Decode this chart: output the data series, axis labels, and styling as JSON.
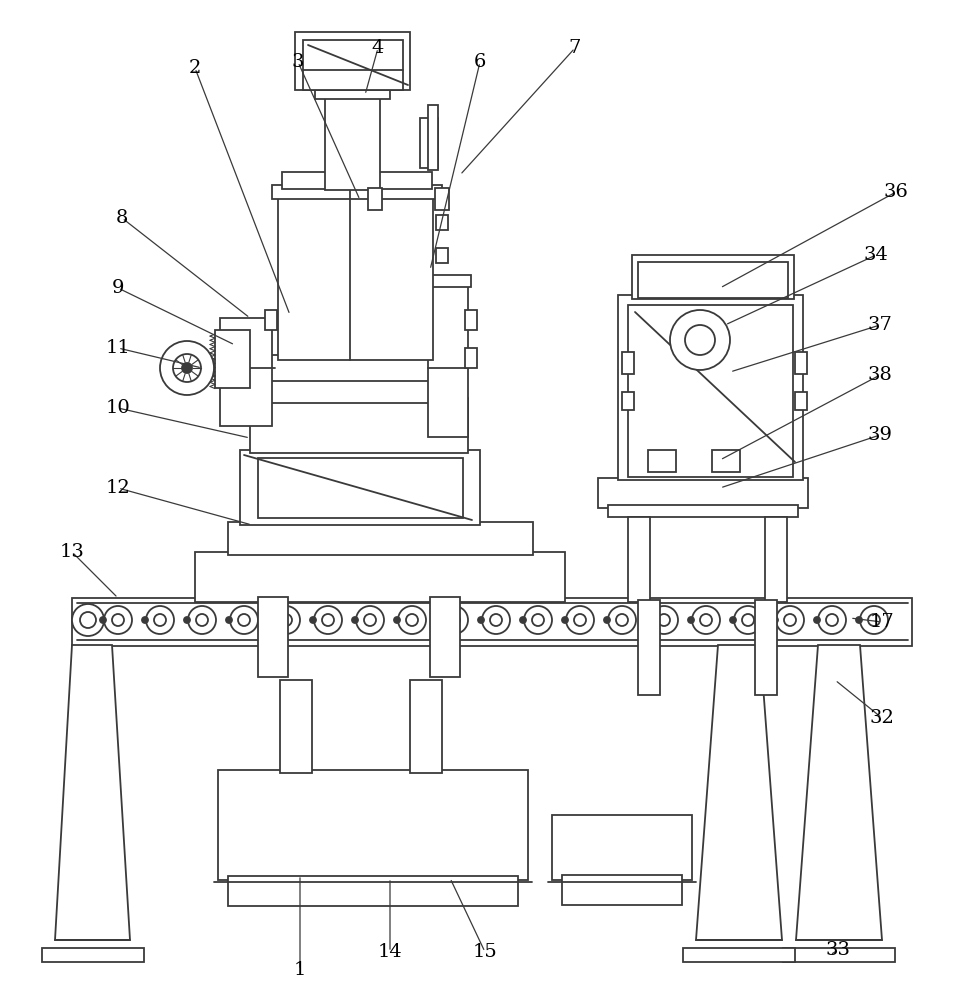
{
  "bg_color": "#ffffff",
  "lc": "#3a3a3a",
  "lw": 1.3,
  "annotations": [
    [
      "1",
      300,
      970,
      300,
      875
    ],
    [
      "2",
      195,
      68,
      290,
      315
    ],
    [
      "3",
      298,
      62,
      360,
      200
    ],
    [
      "4",
      378,
      48,
      365,
      95
    ],
    [
      "6",
      480,
      62,
      430,
      270
    ],
    [
      "7",
      575,
      48,
      460,
      175
    ],
    [
      "8",
      122,
      218,
      250,
      318
    ],
    [
      "9",
      118,
      288,
      235,
      345
    ],
    [
      "10",
      118,
      408,
      250,
      438
    ],
    [
      "11",
      118,
      348,
      202,
      368
    ],
    [
      "12",
      118,
      488,
      252,
      525
    ],
    [
      "13",
      72,
      552,
      118,
      598
    ],
    [
      "14",
      390,
      952,
      390,
      878
    ],
    [
      "15",
      485,
      952,
      450,
      878
    ],
    [
      "17",
      882,
      622,
      850,
      618
    ],
    [
      "32",
      882,
      718,
      835,
      680
    ],
    [
      "33",
      838,
      950,
      830,
      955
    ],
    [
      "34",
      876,
      255,
      725,
      325
    ],
    [
      "36",
      896,
      192,
      720,
      288
    ],
    [
      "37",
      880,
      325,
      730,
      372
    ],
    [
      "38",
      880,
      375,
      720,
      460
    ],
    [
      "39",
      880,
      435,
      720,
      488
    ]
  ]
}
